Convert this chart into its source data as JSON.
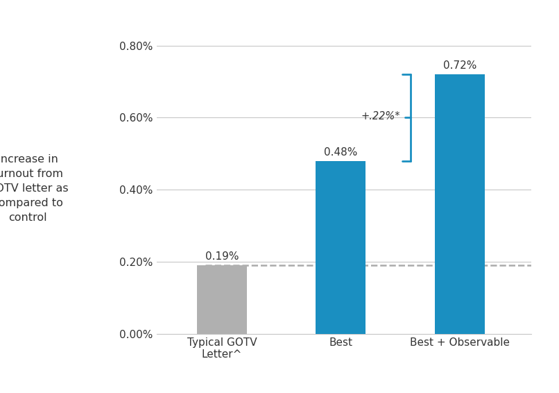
{
  "categories": [
    "Typical GOTV\nLetter^",
    "Best",
    "Best + Observable"
  ],
  "values": [
    0.0019,
    0.0048,
    0.0072
  ],
  "bar_colors": [
    "#b0b0b0",
    "#1a8fc1",
    "#1a8fc1"
  ],
  "bar_labels": [
    "0.19%",
    "0.48%",
    "0.72%"
  ],
  "dashed_line_y": 0.0019,
  "annotation_text": "+.22%*",
  "ylim": [
    0,
    0.0085
  ],
  "yticks": [
    0.0,
    0.002,
    0.004,
    0.006,
    0.008
  ],
  "ytick_labels": [
    "0.00%",
    "0.20%",
    "0.40%",
    "0.60%",
    "0.80%"
  ],
  "ylabel_lines": [
    "Increase in",
    "turnout from",
    "GOTV letter as",
    "compared to",
    "control"
  ],
  "background_color": "#ffffff",
  "grid_color": "#c8c8c8",
  "bracket_color": "#1a8fc1",
  "text_color": "#333333",
  "bar_label_color": "#333333",
  "x_positions": [
    0,
    1,
    2
  ],
  "bar_width": 0.42
}
